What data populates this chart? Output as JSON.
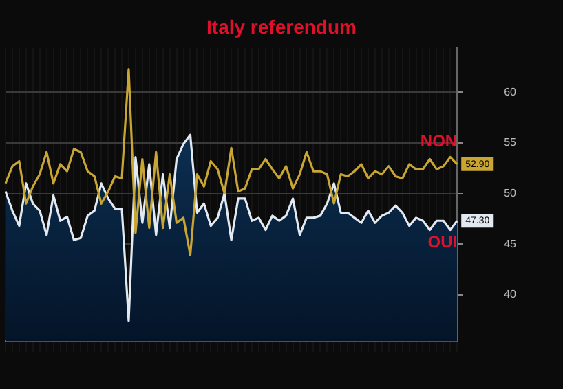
{
  "chart_data": {
    "type": "line",
    "title": "Italy referendum",
    "annotations": [
      "NON",
      "OUI"
    ],
    "categories": [
      null,
      null,
      null,
      null,
      null,
      null,
      null,
      null,
      null,
      null,
      null,
      null,
      null,
      null,
      null,
      null,
      null,
      null,
      null,
      null,
      null,
      null,
      null,
      null,
      null,
      null,
      null,
      null,
      null,
      null,
      null,
      null,
      null,
      null,
      null,
      null,
      null,
      null,
      null,
      null,
      null,
      null,
      null,
      null,
      null,
      null,
      null,
      null,
      null,
      null,
      null,
      null,
      null,
      null,
      null,
      null,
      null,
      null,
      null,
      null,
      null,
      null,
      null,
      null,
      null,
      null,
      null
    ],
    "series": [
      {
        "type": "line",
        "color": "#c9a633",
        "values": [
          51.0,
          52.7,
          53.2,
          49.0,
          50.7,
          51.9,
          54.1,
          51.0,
          52.9,
          52.2,
          54.4,
          54.1,
          52.2,
          51.7,
          49.0,
          50.2,
          51.7,
          51.5,
          62.3,
          46.1,
          53.4,
          46.6,
          54.1,
          46.6,
          51.9,
          47.1,
          47.6,
          43.9,
          51.9,
          50.7,
          53.2,
          52.4,
          50.0,
          54.5,
          50.2,
          50.5,
          52.4,
          52.4,
          53.4,
          52.4,
          51.5,
          52.7,
          50.5,
          51.9,
          54.1,
          52.2,
          52.2,
          51.9,
          49.0,
          51.9,
          51.7,
          52.2,
          52.9,
          51.5,
          52.2,
          51.9,
          52.7,
          51.7,
          51.5,
          52.9,
          52.4,
          52.4,
          53.4,
          52.4,
          52.7,
          53.6,
          52.9
        ],
        "value_labels": [
          null,
          null,
          null,
          null,
          null,
          null,
          null,
          null,
          null,
          null,
          null,
          null,
          null,
          null,
          null,
          null,
          null,
          null,
          null,
          null,
          null,
          null,
          null,
          null,
          null,
          null,
          null,
          null,
          null,
          null,
          null,
          null,
          null,
          null,
          null,
          null,
          null,
          null,
          null,
          null,
          null,
          null,
          null,
          null,
          null,
          null,
          null,
          null,
          null,
          null,
          null,
          null,
          null,
          null,
          null,
          null,
          null,
          null,
          null,
          null,
          null,
          null,
          null,
          null,
          null,
          null,
          "52.90"
        ]
      },
      {
        "type": "area",
        "color": "#e3e9f1",
        "values": [
          50.2,
          48.3,
          46.8,
          51.0,
          49.0,
          48.3,
          45.9,
          49.8,
          47.3,
          47.7,
          45.4,
          45.6,
          47.8,
          48.3,
          51.0,
          49.5,
          48.5,
          48.5,
          37.4,
          53.6,
          47.1,
          52.9,
          45.9,
          51.9,
          46.6,
          53.4,
          54.9,
          55.8,
          48.1,
          49.0,
          46.8,
          47.6,
          50.0,
          45.4,
          49.5,
          49.5,
          47.3,
          47.6,
          46.4,
          47.8,
          47.3,
          47.8,
          49.5,
          45.9,
          47.6,
          47.6,
          47.8,
          49.0,
          51.0,
          48.1,
          48.1,
          47.6,
          47.1,
          48.3,
          47.1,
          47.8,
          48.1,
          48.8,
          48.1,
          46.8,
          47.6,
          47.3,
          46.4,
          47.3,
          47.3,
          46.4,
          47.3
        ],
        "value_labels": [
          null,
          null,
          null,
          null,
          null,
          null,
          null,
          null,
          null,
          null,
          null,
          null,
          null,
          null,
          null,
          null,
          null,
          null,
          null,
          null,
          null,
          null,
          null,
          null,
          null,
          null,
          null,
          null,
          null,
          null,
          null,
          null,
          null,
          null,
          null,
          null,
          null,
          null,
          null,
          null,
          null,
          null,
          null,
          null,
          null,
          null,
          null,
          null,
          null,
          null,
          null,
          null,
          null,
          null,
          null,
          null,
          null,
          null,
          null,
          null,
          null,
          null,
          null,
          null,
          null,
          null,
          "47.30"
        ]
      }
    ],
    "ylim": [
      35.4,
      64.4
    ],
    "yticks": [
      40,
      45,
      50,
      55,
      60
    ],
    "grid": true,
    "tick_labels": "y",
    "marker": "none",
    "line_style": "solid"
  }
}
